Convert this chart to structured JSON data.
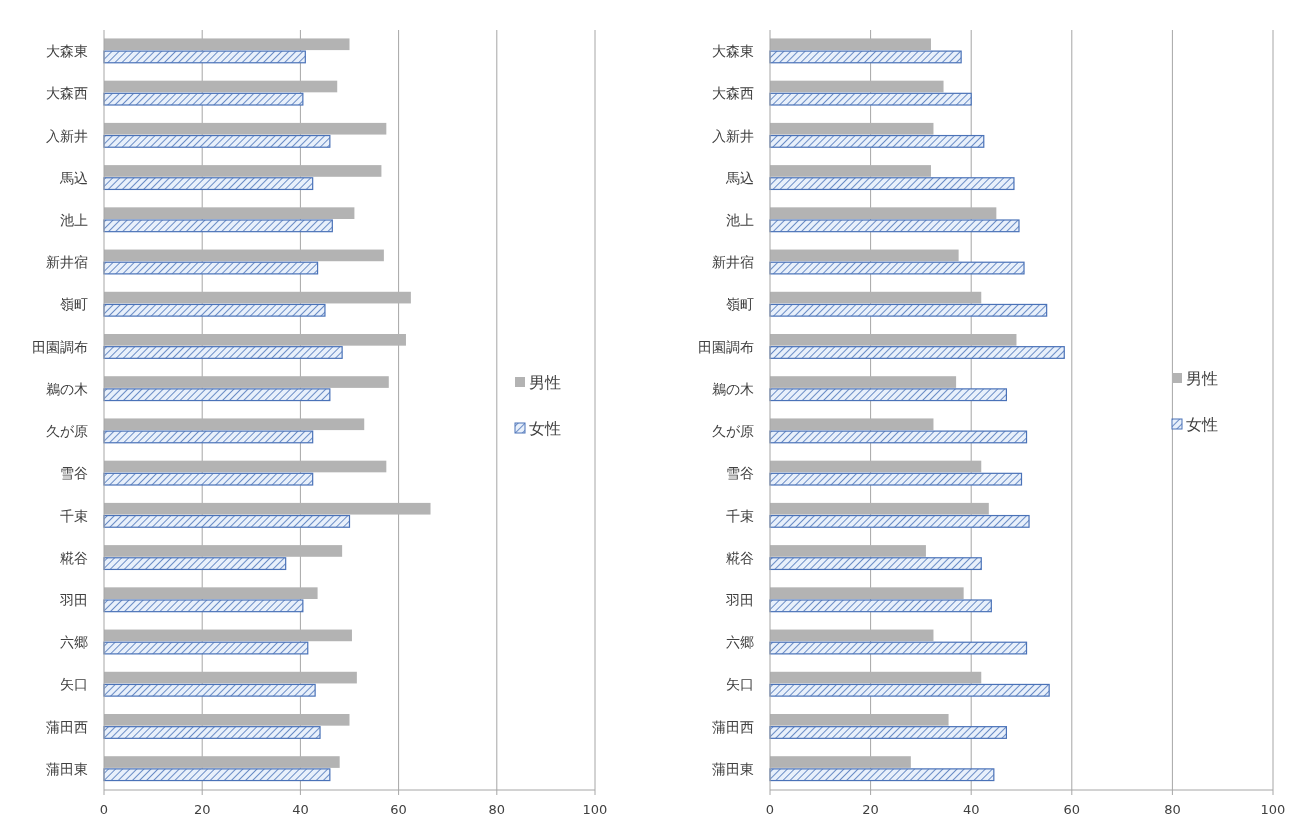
{
  "chart_data": [
    {
      "type": "bar",
      "orientation": "horizontal",
      "categories": [
        "大森東",
        "大森西",
        "入新井",
        "馬込",
        "池上",
        "新井宿",
        "嶺町",
        "田園調布",
        "鵜の木",
        "久が原",
        "雪谷",
        "千束",
        "糀谷",
        "羽田",
        "六郷",
        "矢口",
        "蒲田西",
        "蒲田東"
      ],
      "series": [
        {
          "name": "男性",
          "color": "#b3b3b3",
          "values": [
            50,
            47.5,
            57.5,
            56.5,
            51,
            57,
            62.5,
            61.5,
            58,
            53,
            57.5,
            66.5,
            48.5,
            43.5,
            50.5,
            51.5,
            50,
            48
          ]
        },
        {
          "name": "女性",
          "color": "#4a72b8",
          "values": [
            41,
            40.5,
            46,
            42.5,
            46.5,
            43.5,
            45,
            48.5,
            46,
            42.5,
            42.5,
            50,
            37,
            40.5,
            41.5,
            43,
            44,
            46
          ]
        }
      ],
      "xlim": [
        0,
        100
      ],
      "xticks": [
        0,
        20,
        40,
        60,
        80,
        100
      ],
      "grid": "x",
      "legend": "right"
    },
    {
      "type": "bar",
      "orientation": "horizontal",
      "categories": [
        "大森東",
        "大森西",
        "入新井",
        "馬込",
        "池上",
        "新井宿",
        "嶺町",
        "田園調布",
        "鵜の木",
        "久が原",
        "雪谷",
        "千束",
        "糀谷",
        "羽田",
        "六郷",
        "矢口",
        "蒲田西",
        "蒲田東"
      ],
      "series": [
        {
          "name": "男性",
          "color": "#b3b3b3",
          "values": [
            32,
            34.5,
            32.5,
            32,
            45,
            37.5,
            42,
            49,
            37,
            32.5,
            42,
            43.5,
            31,
            38.5,
            32.5,
            42,
            35.5,
            28
          ]
        },
        {
          "name": "女性",
          "color": "#4a72b8",
          "values": [
            38,
            40,
            42.5,
            48.5,
            49.5,
            50.5,
            55,
            58.5,
            47,
            51,
            50,
            51.5,
            42,
            44,
            51,
            55.5,
            47,
            44.5
          ]
        }
      ],
      "xlim": [
        0,
        100
      ],
      "xticks": [
        0,
        20,
        40,
        60,
        80,
        100
      ],
      "grid": "x",
      "legend": "right"
    }
  ]
}
